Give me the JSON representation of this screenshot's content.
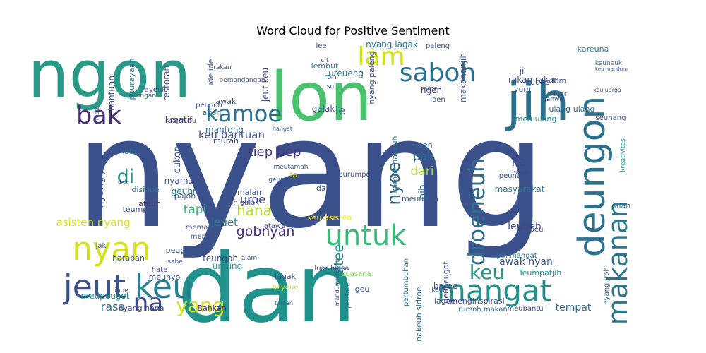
{
  "chart_data": {
    "type": "wordcloud",
    "title": "Word Cloud for Positive Sentiment",
    "colormap": "viridis",
    "background": "#ffffff",
    "words": [
      {
        "text": "nyang",
        "weight": 100,
        "color": "#3b518b"
      },
      {
        "text": "dan",
        "weight": 70,
        "color": "#21918c"
      },
      {
        "text": "ngon",
        "weight": 48,
        "color": "#2a9a88"
      },
      {
        "text": "lon",
        "weight": 47,
        "color": "#4ac16d"
      },
      {
        "text": "jih",
        "weight": 35,
        "color": "#2c728e"
      },
      {
        "text": "jeut",
        "weight": 26,
        "color": "#3b528b"
      },
      {
        "text": "keu",
        "weight": 26,
        "color": "#27808e"
      },
      {
        "text": "mangat",
        "weight": 26,
        "color": "#21918c"
      },
      {
        "text": "nyan",
        "weight": 25,
        "color": "#d2e21b"
      },
      {
        "text": "deungon",
        "weight": 24,
        "color": "#2c728e"
      },
      {
        "text": "untuk",
        "weight": 23,
        "color": "#38b977"
      },
      {
        "text": "makanan",
        "weight": 22,
        "color": "#2a788e"
      },
      {
        "text": "saboh",
        "weight": 21,
        "color": "#2c728e"
      },
      {
        "text": "lam",
        "weight": 21,
        "color": "#d0e11c"
      },
      {
        "text": "kamoe",
        "weight": 20,
        "color": "#2c728e"
      },
      {
        "text": "bak",
        "weight": 20,
        "color": "#472d7b"
      },
      {
        "text": "droeneuh",
        "weight": 19,
        "color": "#2e6e8e"
      },
      {
        "text": "keu",
        "weight": 19,
        "color": "#2a9a88"
      },
      {
        "text": "na",
        "weight": 19,
        "color": "#3e4989"
      },
      {
        "text": "yang",
        "weight": 18,
        "color": "#d2e21b"
      },
      {
        "text": "di",
        "weight": 17,
        "color": "#1f958b"
      },
      {
        "text": "nyoe",
        "weight": 16,
        "color": "#31688e"
      },
      {
        "text": "jeut keu",
        "weight": 7,
        "color": "#3e4989"
      },
      {
        "text": "keu bantuan",
        "weight": 7,
        "color": "#3b528b"
      },
      {
        "text": "le",
        "weight": 9,
        "color": "#2c728e"
      },
      {
        "text": "tiep tiep",
        "weight": 8,
        "color": "#453781"
      },
      {
        "text": "cukop",
        "weight": 6,
        "color": "#3b528b"
      },
      {
        "text": "dari",
        "weight": 8,
        "color": "#a8db34"
      },
      {
        "text": "pah",
        "weight": 7,
        "color": "#2c728e"
      },
      {
        "text": "ka",
        "weight": 8,
        "color": "#3e4989"
      },
      {
        "text": "hana",
        "weight": 8,
        "color": "#b5de2b"
      },
      {
        "text": "uroe",
        "weight": 8,
        "color": "#414487"
      },
      {
        "text": "gobnyan",
        "weight": 8,
        "color": "#472f7d"
      },
      {
        "text": "watee",
        "weight": 8,
        "color": "#21918c"
      },
      {
        "text": "tapi",
        "weight": 7,
        "color": "#35b779"
      },
      {
        "text": "jeuet",
        "weight": 7,
        "color": "#2a788e"
      },
      {
        "text": "asisten nyang",
        "weight": 7,
        "color": "#d5e21a"
      },
      {
        "text": "awak nyan",
        "weight": 6,
        "color": "#3b528b"
      },
      {
        "text": "leubeh",
        "weight": 6,
        "color": "#3e4989"
      },
      {
        "text": "rasa",
        "weight": 7,
        "color": "#2c728e"
      },
      {
        "text": "tempat",
        "weight": 6,
        "color": "#31688e"
      },
      {
        "text": "ulang ulang",
        "weight": 5,
        "color": "#31688e"
      },
      {
        "text": "rakan rakan",
        "weight": 5,
        "color": "#3e4989"
      },
      {
        "text": "kareuna",
        "weight": 5,
        "color": "#2c728e"
      },
      {
        "text": "keuneuk",
        "weight": 4,
        "color": "#31688e"
      },
      {
        "text": "nyang lagak",
        "weight": 4,
        "color": "#2c728e"
      },
      {
        "text": "nyang paleng",
        "weight": 4,
        "color": "#3e4989"
      },
      {
        "text": "makananjih",
        "weight": 4,
        "color": "#3b528b"
      },
      {
        "text": "restoran",
        "weight": 5,
        "color": "#3b528b"
      },
      {
        "text": "bantuan",
        "weight": 5,
        "color": "#3b528b"
      },
      {
        "text": "peurayaan",
        "weight": 5,
        "color": "#2c728e"
      },
      {
        "text": "kreatif",
        "weight": 5,
        "color": "#482677"
      },
      {
        "text": "mantong",
        "weight": 5,
        "color": "#2c728e"
      },
      {
        "text": "nyaman",
        "weight": 5,
        "color": "#3b528b"
      },
      {
        "text": "kota",
        "weight": 5,
        "color": "#2c728e"
      },
      {
        "text": "nyang jeut",
        "weight": 5,
        "color": "#3b528b"
      },
      {
        "text": "pajoh",
        "weight": 5,
        "color": "#3b528b"
      },
      {
        "text": "geubri",
        "weight": 5,
        "color": "#2c728e"
      },
      {
        "text": "disinoe",
        "weight": 5,
        "color": "#2c728e"
      },
      {
        "text": "ateuh",
        "weight": 5,
        "color": "#453781"
      },
      {
        "text": "teumpat",
        "weight": 4,
        "color": "#3b528b"
      },
      {
        "text": "peugot",
        "weight": 4,
        "color": "#3b528b"
      },
      {
        "text": "meupeugot",
        "weight": 5,
        "color": "#21918c"
      },
      {
        "text": "harapan",
        "weight": 5,
        "color": "#3b528b"
      },
      {
        "text": "nyang hana",
        "weight": 5,
        "color": "#3e4989"
      },
      {
        "text": "Bahkan",
        "weight": 4,
        "color": "#482677"
      },
      {
        "text": "teungoh",
        "weight": 5,
        "color": "#3e4989"
      },
      {
        "text": "ureung",
        "weight": 5,
        "color": "#21918c"
      },
      {
        "text": "murah",
        "weight": 5,
        "color": "#3b528b"
      },
      {
        "text": "akan",
        "weight": 5,
        "color": "#2c728e"
      },
      {
        "text": "awak",
        "weight": 5,
        "color": "#3b528b"
      },
      {
        "text": "galak",
        "weight": 5,
        "color": "#3b528b"
      },
      {
        "text": "roh",
        "weight": 5,
        "color": "#31688e"
      },
      {
        "text": "lembut",
        "weight": 5,
        "color": "#2c728e"
      },
      {
        "text": "ide ide",
        "weight": 5,
        "color": "#3b528b"
      },
      {
        "text": "ngen",
        "weight": 5,
        "color": "#453781"
      },
      {
        "text": "udep",
        "weight": 5,
        "color": "#3b528b"
      },
      {
        "text": "yum",
        "weight": 5,
        "color": "#3b528b"
      },
      {
        "text": "lom",
        "weight": 5,
        "color": "#3b528b"
      },
      {
        "text": "ji",
        "weight": 5,
        "color": "#3e4989"
      },
      {
        "text": "meu ulang",
        "weight": 5,
        "color": "#21918c"
      },
      {
        "text": "laen",
        "weight": 5,
        "color": "#2c728e"
      },
      {
        "text": "pih",
        "weight": 5,
        "color": "#2c728e"
      },
      {
        "text": "kamoe nakeuh",
        "weight": 4,
        "color": "#2c728e"
      },
      {
        "text": "meuubah",
        "weight": 4,
        "color": "#3b528b"
      },
      {
        "text": "masyarakat",
        "weight": 5,
        "color": "#2c728e"
      },
      {
        "text": "peunajoh",
        "weight": 4,
        "color": "#3b528b"
      },
      {
        "text": "jalan",
        "weight": 5,
        "color": "#2c728e"
      },
      {
        "text": "nyang jroh",
        "weight": 4,
        "color": "#31688e"
      },
      {
        "text": "kreativitas",
        "weight": 4,
        "color": "#21918c"
      },
      {
        "text": "seunang",
        "weight": 4,
        "color": "#3e4989"
      },
      {
        "text": "bagah",
        "weight": 3,
        "color": "#3e4989"
      },
      {
        "text": "geupeugot",
        "weight": 4,
        "color": "#3b528b"
      },
      {
        "text": "pih mangat",
        "weight": 4,
        "color": "#2c728e"
      },
      {
        "text": "Teumpatjih",
        "weight": 4,
        "color": "#21918c"
      },
      {
        "text": "peu",
        "weight": 4,
        "color": "#3e4989"
      },
      {
        "text": "keu asisten",
        "weight": 4,
        "color": "#fde725"
      },
      {
        "text": "menginspirasi",
        "weight": 4,
        "color": "#3b528b"
      },
      {
        "text": "rumoh makan",
        "weight": 4,
        "color": "#31688e"
      },
      {
        "text": "meubantu",
        "weight": 4,
        "color": "#3b528b"
      },
      {
        "text": "lagee",
        "weight": 4,
        "color": "#3b528b"
      },
      {
        "text": "pertumbuhan",
        "weight": 4,
        "color": "#2c728e"
      },
      {
        "text": "baroe",
        "weight": 4,
        "color": "#3e4989"
      },
      {
        "text": "nakeuh sidroe",
        "weight": 4,
        "color": "#2c728e"
      },
      {
        "text": "suasana",
        "weight": 4,
        "color": "#7ad151"
      },
      {
        "text": "lagak",
        "weight": 4,
        "color": "#3b528b"
      },
      {
        "text": "luar biasa",
        "weight": 4,
        "color": "#3e4989"
      },
      {
        "text": "geu",
        "weight": 4,
        "color": "#3b528b"
      },
      {
        "text": "pilihan",
        "weight": 4,
        "color": "#2c728e"
      },
      {
        "text": "hayeue",
        "weight": 4,
        "color": "#bddf26"
      },
      {
        "text": "taman",
        "weight": 3,
        "color": "#2c728e"
      },
      {
        "text": "mandum ureung",
        "weight": 3,
        "color": "#3b528b"
      },
      {
        "text": "menu",
        "weight": 4,
        "color": "#3b528b"
      },
      {
        "text": "memang",
        "weight": 3,
        "color": "#3b528b"
      },
      {
        "text": "atawa",
        "weight": 4,
        "color": "#3e4989"
      },
      {
        "text": "malam",
        "weight": 4,
        "color": "#3b528b"
      },
      {
        "text": "dalam",
        "weight": 4,
        "color": "#3b528b"
      },
      {
        "text": "ta",
        "weight": 4,
        "color": "#d2e21b"
      },
      {
        "text": "Lon galak",
        "weight": 3,
        "color": "#3b528b"
      },
      {
        "text": "hate",
        "weight": 4,
        "color": "#3e4989"
      },
      {
        "text": "meunyo",
        "weight": 4,
        "color": "#3b528b"
      },
      {
        "text": "geupeurayaa",
        "weight": 3,
        "color": "#3b528b"
      },
      {
        "text": "meutamah",
        "weight": 3,
        "color": "#3b528b"
      },
      {
        "text": "peunoh",
        "weight": 3,
        "color": "#3b528b"
      },
      {
        "text": "pasangan",
        "weight": 3,
        "color": "#31688e"
      },
      {
        "text": "rayeuk",
        "weight": 3,
        "color": "#3b528b"
      },
      {
        "text": "hangat",
        "weight": 3,
        "color": "#3b528b"
      },
      {
        "text": "segar",
        "weight": 3,
        "color": "#3b528b"
      },
      {
        "text": "bahwa",
        "weight": 3,
        "color": "#3b528b"
      },
      {
        "text": "ureueng",
        "weight": 4,
        "color": "#2c728e"
      },
      {
        "text": "cit",
        "weight": 4,
        "color": "#3b528b"
      },
      {
        "text": "lee",
        "weight": 4,
        "color": "#3b528b"
      },
      {
        "text": "paleng",
        "weight": 3,
        "color": "#3b528b"
      },
      {
        "text": "loen",
        "weight": 3,
        "color": "#3b528b"
      },
      {
        "text": "rame",
        "weight": 3,
        "color": "#3b528b"
      },
      {
        "text": "resto",
        "weight": 3,
        "color": "#3b528b"
      },
      {
        "text": "pemandangan",
        "weight": 3,
        "color": "#3b528b"
      },
      {
        "text": "rakan",
        "weight": 3,
        "color": "#3b528b"
      },
      {
        "text": "keuluarga",
        "weight": 2,
        "color": "#3b528b"
      },
      {
        "text": "su",
        "weight": 3,
        "color": "#3b528b"
      },
      {
        "text": "keuh",
        "weight": 3,
        "color": "#3b528b"
      },
      {
        "text": "jak",
        "weight": 3,
        "color": "#3b528b"
      },
      {
        "text": "sabe",
        "weight": 3,
        "color": "#3b528b"
      },
      {
        "text": "alam",
        "weight": 3,
        "color": "#3b528b"
      },
      {
        "text": "inoe",
        "weight": 3,
        "color": "#3b528b"
      },
      {
        "text": "pajoh bu",
        "weight": 3,
        "color": "#3b528b"
      },
      {
        "text": "droe",
        "weight": 3,
        "color": "#3b528b"
      },
      {
        "text": "keu mandum",
        "weight": 2,
        "color": "#3b528b"
      },
      {
        "text": "meurumpok",
        "weight": 2,
        "color": "#3b528b"
      }
    ]
  }
}
